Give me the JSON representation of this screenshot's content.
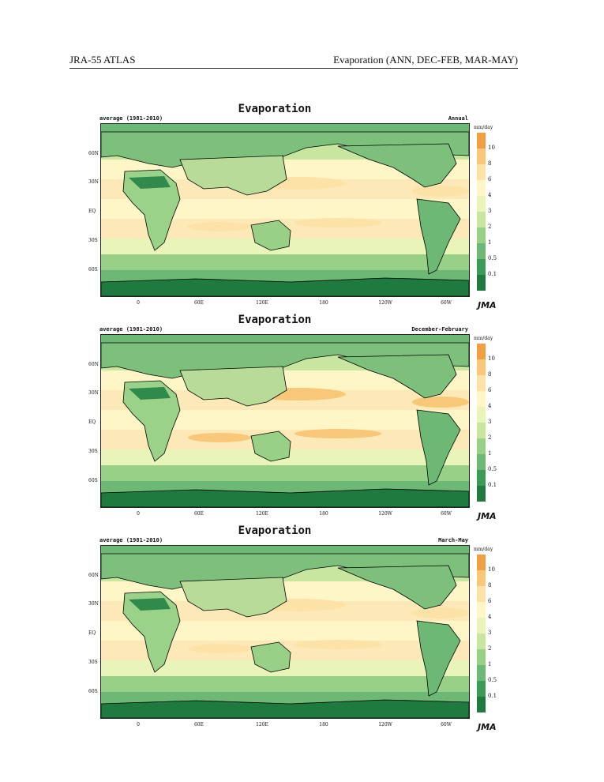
{
  "header": {
    "left": "JRA-55 ATLAS",
    "right": "Evaporation (ANN, DEC-FEB, MAR-MAY)"
  },
  "panels": [
    {
      "title": "Evaporation",
      "subtitle_left": "average (1981-2010)",
      "subtitle_right": "Annual"
    },
    {
      "title": "Evaporation",
      "subtitle_left": "average (1981-2010)",
      "subtitle_right": "December-February"
    },
    {
      "title": "Evaporation",
      "subtitle_left": "average (1981-2010)",
      "subtitle_right": "March-May"
    }
  ],
  "lat_labels": [
    "60N",
    "30N",
    "EQ",
    "30S",
    "60S"
  ],
  "lon_labels": [
    "0",
    "60E",
    "120E",
    "180",
    "120W",
    "60W"
  ],
  "colorbar": {
    "units": "mm/day",
    "levels": [
      "10",
      "8",
      "6",
      "4",
      "3",
      "2",
      "1",
      "0.5",
      "0.1"
    ],
    "colors": [
      "#f0a040",
      "#f8c878",
      "#fde2a8",
      "#fff6c8",
      "#e8f4b8",
      "#c8e6a0",
      "#98d088",
      "#6cb874",
      "#3a9a56",
      "#1f7a40"
    ]
  },
  "logo": "JMA"
}
